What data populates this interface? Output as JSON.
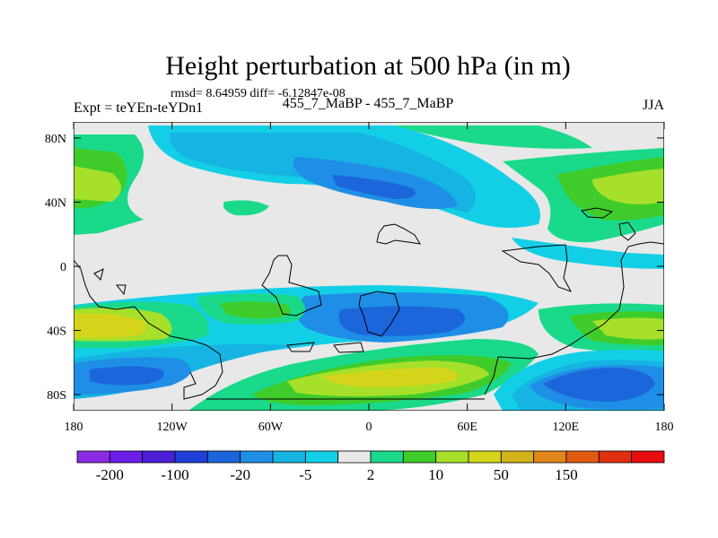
{
  "title": "Height perturbation at 500 hPa (in m)",
  "stats": "rmsd= 8.64959 diff= -6.12847e-08",
  "experiment": "Expt = teYEn-teYDn1",
  "comparison": "455_7_MaBP - 455_7_MaBP",
  "season": "JJA",
  "map": {
    "lat_ticks": [
      {
        "value": 80,
        "label": "80N"
      },
      {
        "value": 40,
        "label": "40N"
      },
      {
        "value": 0,
        "label": "0"
      },
      {
        "value": -40,
        "label": "40S"
      },
      {
        "value": -80,
        "label": "80S"
      }
    ],
    "lon_ticks": [
      {
        "value": -180,
        "label": "180"
      },
      {
        "value": -120,
        "label": "120W"
      },
      {
        "value": -60,
        "label": "60W"
      },
      {
        "value": 0,
        "label": "0"
      },
      {
        "value": 60,
        "label": "60E"
      },
      {
        "value": 120,
        "label": "120E"
      },
      {
        "value": 180,
        "label": "180"
      }
    ],
    "lat_range": [
      -90,
      90
    ],
    "lon_range": [
      -180,
      180
    ]
  },
  "colorbar": {
    "colors": [
      "#8a2be2",
      "#6a1ee8",
      "#4b1fd6",
      "#1f3fd8",
      "#1c66dc",
      "#1f8ee6",
      "#16b4e2",
      "#13cfe6",
      "#e8e8e8",
      "#1ad98a",
      "#3fcc2a",
      "#a6e02a",
      "#d4d41a",
      "#d4b21a",
      "#e0861a",
      "#e05a12",
      "#e03010",
      "#e80c0c"
    ],
    "labels": [
      "-200",
      "-100",
      "-20",
      "-5",
      "2",
      "10",
      "50",
      "150"
    ]
  }
}
